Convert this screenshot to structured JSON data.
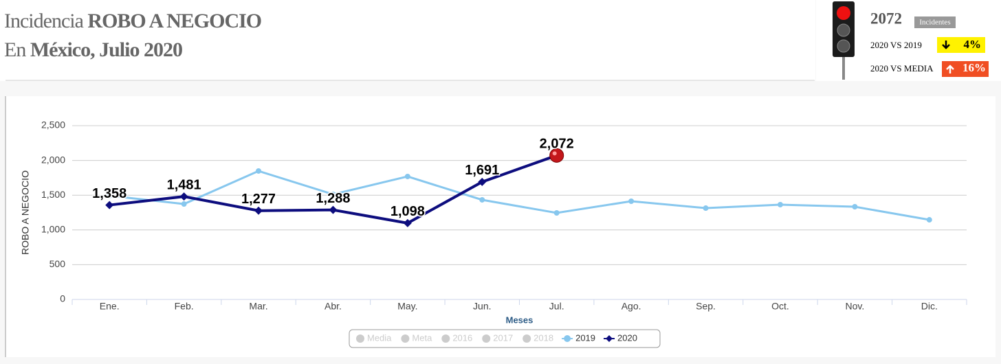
{
  "header": {
    "title_prefix": "Incidencia",
    "title_main": "ROBO A NEGOCIO",
    "subtitle_prefix": "En",
    "subtitle_main": "México, Julio 2020"
  },
  "indicator": {
    "total": "2072",
    "total_label": "Incidentes",
    "vs_2019_label": "2020 VS 2019",
    "vs_2019_value": "4%",
    "vs_media_label": "2020 VS MEDIA",
    "vs_media_value": "16%"
  },
  "chart_data": {
    "type": "line",
    "x_label": "Meses",
    "y_label": "ROBO A NEGOCIO",
    "categories": [
      "Ene.",
      "Feb.",
      "Mar.",
      "Abr.",
      "May.",
      "Jun.",
      "Jul.",
      "Ago.",
      "Sep.",
      "Oct.",
      "Nov.",
      "Dic."
    ],
    "series": [
      {
        "name": "2019",
        "color": "#87c7ee",
        "marker": "circle",
        "values": [
          1492,
          1373,
          1848,
          1512,
          1769,
          1433,
          1245,
          1413,
          1314,
          1364,
          1334,
          1146
        ]
      },
      {
        "name": "2020",
        "color": "#0d0d7e",
        "marker": "diamond",
        "last_point_color": "#c4171b",
        "values": [
          1358,
          1481,
          1277,
          1288,
          1098,
          1691,
          2072,
          null,
          null,
          null,
          null,
          null
        ],
        "value_labels": [
          "1,358",
          "1,481",
          "1,277",
          "1,288",
          "1,098",
          "1,691",
          "2,072",
          null,
          null,
          null,
          null,
          null
        ]
      }
    ],
    "inactive_legend": [
      "Media",
      "Meta",
      "2016",
      "2017",
      "2018"
    ],
    "ylim": [
      0,
      2500
    ],
    "yticks": [
      0,
      500,
      {
        "value": 1000,
        "label": "1,000"
      },
      {
        "value": 1500,
        "label": "1,500"
      },
      {
        "value": 2000,
        "label": "2,000"
      },
      {
        "value": 2500,
        "label": "2,500"
      }
    ],
    "grid": true
  }
}
